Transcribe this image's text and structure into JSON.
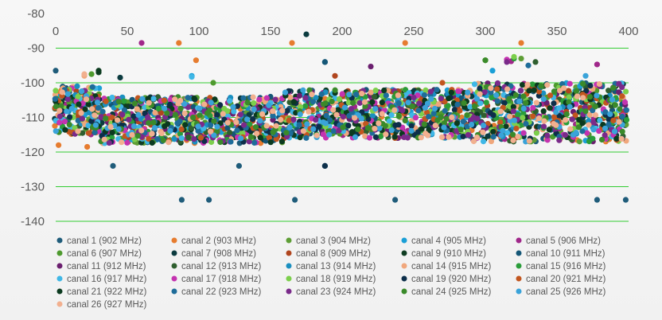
{
  "chart_data": {
    "type": "scatter",
    "title": "",
    "xlabel": "",
    "ylabel": "",
    "xlim": [
      0,
      400
    ],
    "ylim": [
      -140,
      -80
    ],
    "x_ticks": [
      "0",
      "50",
      "100",
      "150",
      "200",
      "250",
      "300",
      "350",
      "400"
    ],
    "y_ticks": [
      "-80",
      "-90",
      "-100",
      "-110",
      "-120",
      "-130",
      "-140"
    ],
    "x_axis_position": "top (at y = -85)",
    "gridlines": "horizontal, green",
    "legend_position": "bottom",
    "series": [
      {
        "name": "canal 1 (902 MHz)",
        "color": "#1f5c7a",
        "points": [
          [
            40,
            -124
          ],
          [
            88,
            -133.8
          ],
          [
            107,
            -133.8
          ],
          [
            128,
            -124
          ],
          [
            167,
            -133.8
          ],
          [
            188,
            -124
          ],
          [
            237,
            -133.8
          ],
          [
            378,
            -133.8
          ],
          [
            398,
            -133.8
          ],
          [
            0,
            -96.5
          ],
          [
            188,
            -94
          ]
        ]
      },
      {
        "name": "canal 2 (903 MHz)",
        "color": "#e67c2f",
        "points": [
          [
            86,
            -88.5
          ],
          [
            98,
            -93.5
          ],
          [
            165,
            -88.5
          ],
          [
            244,
            -88.5
          ],
          [
            325,
            -88.5
          ],
          [
            2,
            -118
          ],
          [
            22,
            -118.5
          ]
        ]
      },
      {
        "name": "canal 3 (904 MHz)",
        "color": "#5e9e36",
        "points": [
          [
            300,
            -93.5
          ],
          [
            325,
            -93
          ]
        ]
      },
      {
        "name": "canal 4 (905 MHz)",
        "color": "#1a9fd6",
        "points": [
          [
            95,
            -98
          ],
          [
            305,
            -96.5
          ]
        ]
      },
      {
        "name": "canal 5 (906 MHz)",
        "color": "#a0278a",
        "points": [
          [
            60,
            -88.5
          ],
          [
            318,
            -93.8
          ],
          [
            378,
            -94.7
          ]
        ]
      },
      {
        "name": "canal 6 (907 MHz)",
        "color": "#4e9a2e",
        "points": [
          [
            25,
            -97.5
          ],
          [
            110,
            -100
          ]
        ]
      },
      {
        "name": "canal 7 (908 MHz)",
        "color": "#0b3b3f",
        "points": [
          [
            175,
            -86
          ],
          [
            45,
            -98.5
          ]
        ]
      },
      {
        "name": "canal 8 (909 MHz)",
        "color": "#b0451e",
        "points": [
          [
            195,
            -98
          ]
        ]
      },
      {
        "name": "canal 9 (910 MHz)",
        "color": "#0f3d22",
        "points": [
          [
            30,
            -97
          ]
        ]
      },
      {
        "name": "canal 10 (911 MHz)",
        "color": "#155777",
        "points": [
          [
            188,
            -94
          ]
        ]
      },
      {
        "name": "canal 11 (912 MHz)",
        "color": "#6b1f6f",
        "points": [
          [
            220,
            -95.3
          ]
        ]
      },
      {
        "name": "canal 12 (913 MHz)",
        "color": "#2f5f2f",
        "points": [
          [
            335,
            -94
          ]
        ]
      },
      {
        "name": "canal 13 (914 MHz)",
        "color": "#1a8fc0",
        "points": [
          [
            15,
            -101
          ]
        ]
      },
      {
        "name": "canal 14 (915 MHz)",
        "color": "#f0a77c",
        "points": [
          [
            20,
            -98
          ]
        ]
      },
      {
        "name": "canal 15 (916 MHz)",
        "color": "#2a9d3a",
        "points": [
          [
            320,
            -93
          ]
        ]
      },
      {
        "name": "canal 16 (917 MHz)",
        "color": "#3fb7e6",
        "points": [
          [
            95,
            -98.3
          ]
        ]
      },
      {
        "name": "canal 17 (918 MHz)",
        "color": "#c433b0",
        "points": [
          [
            315,
            -93.3
          ]
        ]
      },
      {
        "name": "canal 18 (919 MHz)",
        "color": "#7ccf4c",
        "points": [
          [
            320,
            -92.5
          ]
        ]
      },
      {
        "name": "canal 19 (920 MHz)",
        "color": "#0d2f4a",
        "points": [
          [
            188,
            -124
          ]
        ]
      },
      {
        "name": "canal 20 (921 MHz)",
        "color": "#c2561f",
        "points": [
          [
            270,
            -100
          ]
        ]
      },
      {
        "name": "canal 21 (922 MHz)",
        "color": "#0b3a1f",
        "points": [
          [
            30,
            -96.5
          ]
        ]
      },
      {
        "name": "canal 22 (923 MHz)",
        "color": "#1e6c99",
        "points": [
          [
            330,
            -95
          ]
        ]
      },
      {
        "name": "canal 23 (924 MHz)",
        "color": "#7a2a8a",
        "points": [
          [
            315,
            -94
          ]
        ]
      },
      {
        "name": "canal 24 (925 MHz)",
        "color": "#3a8a2a",
        "points": [
          [
            300,
            -93.5
          ]
        ]
      },
      {
        "name": "canal 25 (926 MHz)",
        "color": "#3aa3d9",
        "points": [
          [
            370,
            -98
          ]
        ]
      },
      {
        "name": "canal 26 (927 MHz)",
        "color": "#f2b08f",
        "points": [
          [
            20,
            -97.5
          ]
        ]
      }
    ]
  }
}
